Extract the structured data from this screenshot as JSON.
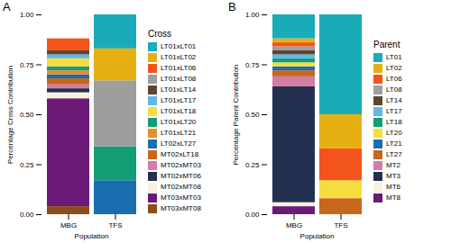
{
  "chart_data": [
    {
      "type": "bar",
      "title": "A",
      "stacked": true,
      "legend": "right",
      "legend_title": "Cross",
      "categories": [
        "MBG",
        "TFS"
      ],
      "xlabel": "Population",
      "ylabel": "Percentage Cross Contribution",
      "ylim": [
        0,
        1
      ],
      "yticks": [
        {
          "value": 0,
          "label": "0.00"
        },
        {
          "value": 0.25,
          "label": "0.25"
        },
        {
          "value": 0.5,
          "label": "0.50"
        },
        {
          "value": 0.75,
          "label": "0.75"
        },
        {
          "value": 1,
          "label": "1.00"
        }
      ],
      "series": [
        {
          "name": "LT01xLT01",
          "color": "#1aabb8",
          "values": [
            0,
            0.17
          ]
        },
        {
          "name": "LT01xLT02",
          "color": "#e6b012",
          "values": [
            0,
            0.16
          ]
        },
        {
          "name": "LT01xLT06",
          "color": "#f2541b",
          "values": [
            0.06,
            0
          ]
        },
        {
          "name": "LT01xLT08",
          "color": "#9e9e9e",
          "values": [
            0,
            0.33
          ]
        },
        {
          "name": "LT01xLT14",
          "color": "#5a4632",
          "values": [
            0.02,
            0
          ]
        },
        {
          "name": "LT01xLT17",
          "color": "#60b8e8",
          "values": [
            0.02,
            0
          ]
        },
        {
          "name": "LT01xLT18",
          "color": "#f5dd3f",
          "values": [
            0.04,
            0
          ]
        },
        {
          "name": "LT01xLT20",
          "color": "#139e75",
          "values": [
            0.02,
            0.17
          ]
        },
        {
          "name": "LT01xLT21",
          "color": "#e88b2e",
          "values": [
            0.02,
            0
          ]
        },
        {
          "name": "LT02xLT27",
          "color": "#1a6eb0",
          "values": [
            0.02,
            0.17
          ]
        },
        {
          "name": "MT02xLT18",
          "color": "#c8661c",
          "values": [
            0.03,
            0
          ]
        },
        {
          "name": "MT02xMT03",
          "color": "#d37ca6",
          "values": [
            0.02,
            0
          ]
        },
        {
          "name": "MT02xMT06",
          "color": "#24304f",
          "values": [
            0.02,
            0
          ]
        },
        {
          "name": "MT02xMT08",
          "color": "#f7f2d8",
          "values": [
            0.03,
            0
          ]
        },
        {
          "name": "MT03xMT03",
          "color": "#6b1a77",
          "values": [
            0.54,
            0
          ]
        },
        {
          "name": "MT03xMT08",
          "color": "#8a4e1a",
          "values": [
            0.04,
            0
          ]
        }
      ]
    },
    {
      "type": "bar",
      "title": "B",
      "stacked": true,
      "legend": "right",
      "legend_title": "Parent",
      "categories": [
        "MBG",
        "TFS"
      ],
      "xlabel": "Population",
      "ylabel": "Percentage Parent Contribution",
      "ylim": [
        0,
        1
      ],
      "yticks": [
        {
          "value": 0,
          "label": "0.00"
        },
        {
          "value": 0.25,
          "label": "0.25"
        },
        {
          "value": 0.5,
          "label": "0.50"
        },
        {
          "value": 0.75,
          "label": "0.75"
        },
        {
          "value": 1,
          "label": "1.00"
        }
      ],
      "series": [
        {
          "name": "LT01",
          "color": "#1aabb8",
          "values": [
            0.12,
            0.5
          ]
        },
        {
          "name": "LT02",
          "color": "#e6b012",
          "values": [
            0.02,
            0.17
          ]
        },
        {
          "name": "LT06",
          "color": "#f2541b",
          "values": [
            0.02,
            0.16
          ]
        },
        {
          "name": "LT08",
          "color": "#9e9e9e",
          "values": [
            0.02,
            0
          ]
        },
        {
          "name": "LT14",
          "color": "#5a4632",
          "values": [
            0.02,
            0
          ]
        },
        {
          "name": "LT17",
          "color": "#60b8e8",
          "values": [
            0.02,
            0
          ]
        },
        {
          "name": "LT18",
          "color": "#139e75",
          "values": [
            0.02,
            0
          ]
        },
        {
          "name": "LT20",
          "color": "#f5dd3f",
          "values": [
            0.02,
            0.09
          ]
        },
        {
          "name": "LT21",
          "color": "#1a6eb0",
          "values": [
            0.02,
            0
          ]
        },
        {
          "name": "LT27",
          "color": "#c8661c",
          "values": [
            0.03,
            0.08
          ]
        },
        {
          "name": "MT2",
          "color": "#d37ca6",
          "values": [
            0.05,
            0
          ]
        },
        {
          "name": "MT3",
          "color": "#24304f",
          "values": [
            0.58,
            0
          ]
        },
        {
          "name": "MT6",
          "color": "#f7f2d8",
          "values": [
            0.02,
            0
          ]
        },
        {
          "name": "MT8",
          "color": "#6b1a77",
          "values": [
            0.04,
            0
          ]
        }
      ]
    }
  ]
}
